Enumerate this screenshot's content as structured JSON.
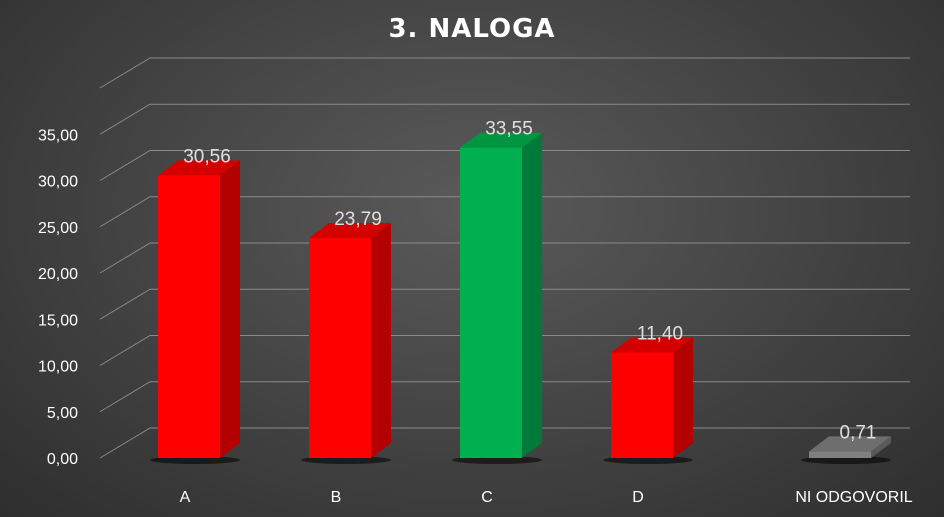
{
  "chart_data": {
    "type": "bar",
    "title": "3. NALOGA",
    "categories": [
      "A",
      "B",
      "C",
      "D",
      "NI ODGOVORIL"
    ],
    "values": [
      30.56,
      23.79,
      33.55,
      11.4,
      0.71
    ],
    "value_labels": [
      "30,56",
      "23,79",
      "33,55",
      "11,40",
      "0,71"
    ],
    "y_ticks": [
      "0,00",
      "5,00",
      "10,00",
      "15,00",
      "20,00",
      "25,00",
      "30,00",
      "35,00"
    ],
    "ylim": [
      0,
      40
    ],
    "grid": true,
    "legend": "none",
    "bar_colors": [
      "#ff0000",
      "#ff0000",
      "#00b050",
      "#ff0000",
      "#808080"
    ],
    "bar_side_colors": [
      "#b30000",
      "#b30000",
      "#007a38",
      "#b30000",
      "#5a5a5a"
    ],
    "bar_top_colors": [
      "#d40000",
      "#d40000",
      "#00953f",
      "#d40000",
      "#6e6e6e"
    ]
  }
}
